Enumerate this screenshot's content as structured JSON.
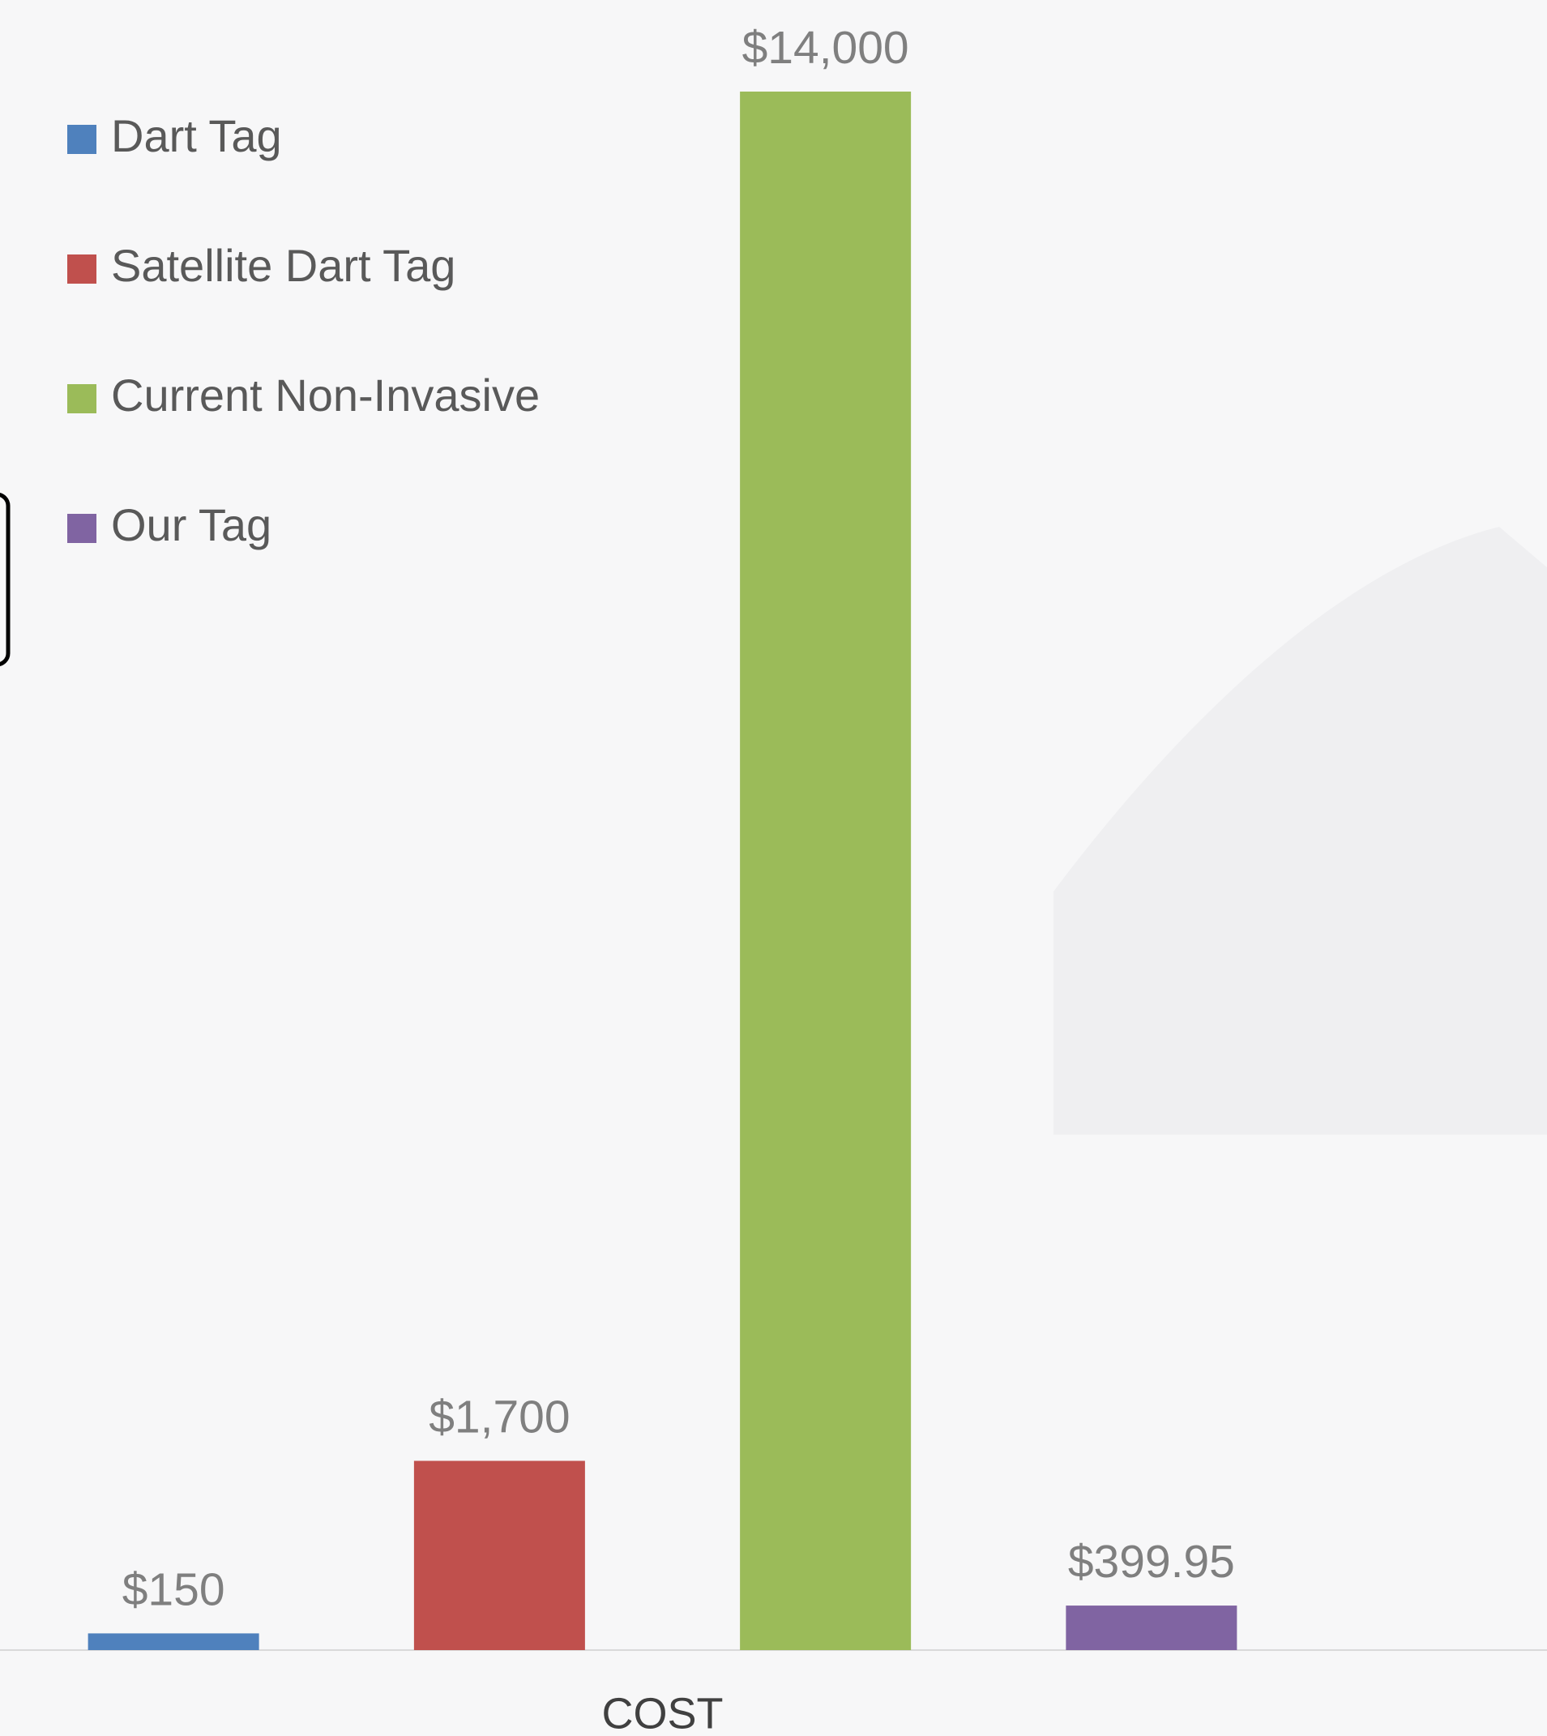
{
  "chart_data": {
    "type": "bar",
    "categories": [
      "COST"
    ],
    "series": [
      {
        "name": "Dart Tag",
        "color": "#4f81bd",
        "values": [
          150
        ],
        "value_labels": [
          "$150"
        ]
      },
      {
        "name": "Satellite Dart Tag",
        "color": "#c0504d",
        "values": [
          1700
        ],
        "value_labels": [
          "$1,700"
        ]
      },
      {
        "name": "Current Non-Invasive",
        "color": "#9bbb59",
        "values": [
          14000
        ],
        "value_labels": [
          "$14,000"
        ]
      },
      {
        "name": "Our Tag",
        "color": "#8064a2",
        "values": [
          399.95
        ],
        "value_labels": [
          "$399.95"
        ]
      }
    ],
    "legend": "top-left"
  }
}
